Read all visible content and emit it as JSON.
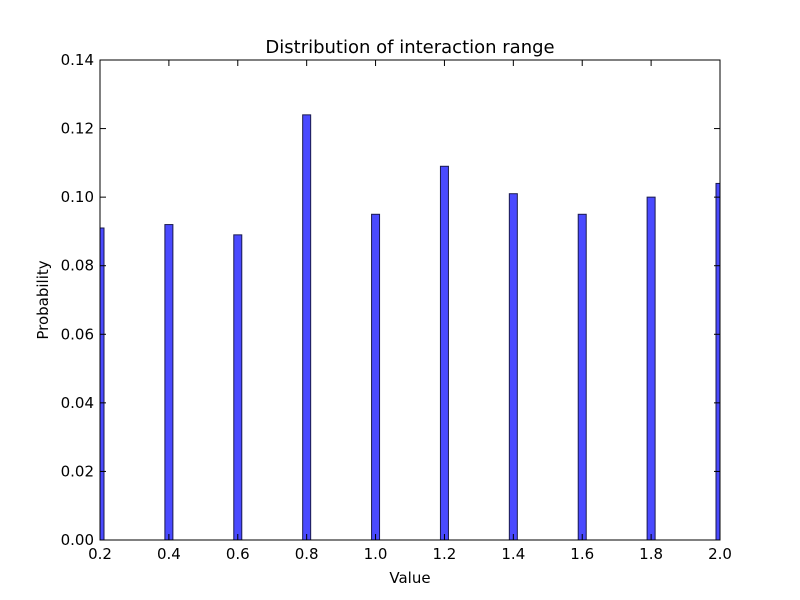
{
  "chart_data": {
    "type": "bar",
    "title": "Distribution of interaction range",
    "xlabel": "Value",
    "ylabel": "Probability",
    "xlim": [
      0.2,
      2.0
    ],
    "ylim": [
      0.0,
      0.14
    ],
    "x_ticks": [
      "0.2",
      "0.4",
      "0.6",
      "0.8",
      "1.0",
      "1.2",
      "1.4",
      "1.6",
      "1.8",
      "2.0"
    ],
    "y_ticks": [
      "0.00",
      "0.02",
      "0.04",
      "0.06",
      "0.08",
      "0.10",
      "0.12",
      "0.14"
    ],
    "x": [
      0.2,
      0.4,
      0.6,
      0.8,
      1.0,
      1.2,
      1.4,
      1.6,
      1.8,
      2.0
    ],
    "values": [
      0.091,
      0.092,
      0.089,
      0.124,
      0.095,
      0.109,
      0.101,
      0.095,
      0.1,
      0.104
    ],
    "bar_color": "#4a4aff",
    "bar_edge_color": "#1a1a4d",
    "grid": false,
    "legend": false
  }
}
